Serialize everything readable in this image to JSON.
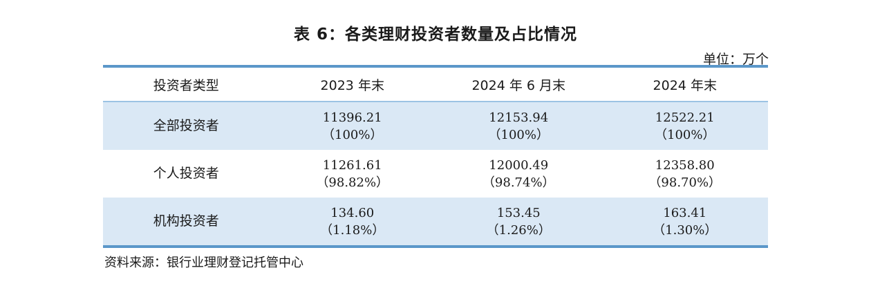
{
  "title": "表 6：各类理财投资者数量及占比情况",
  "unit": "单位：万个",
  "table": {
    "headers": [
      "投资者类型",
      "2023 年末",
      "2024 年 6 月末",
      "2024 年末"
    ],
    "rows": [
      {
        "label": "全部投资者",
        "cells": [
          {
            "value": "11396.21",
            "pct": "（100%）"
          },
          {
            "value": "12153.94",
            "pct": "（100%）"
          },
          {
            "value": "12522.21",
            "pct": "（100%）"
          }
        ]
      },
      {
        "label": "个人投资者",
        "cells": [
          {
            "value": "11261.61",
            "pct": "（98.82%）"
          },
          {
            "value": "12000.49",
            "pct": "（98.74%）"
          },
          {
            "value": "12358.80",
            "pct": "（98.70%）"
          }
        ]
      },
      {
        "label": "机构投资者",
        "cells": [
          {
            "value": "134.60",
            "pct": "（1.18%）"
          },
          {
            "value": "153.45",
            "pct": "（1.26%）"
          },
          {
            "value": "163.41",
            "pct": "（1.30%）"
          }
        ]
      }
    ]
  },
  "source": "资料来源：银行业理财登记托管中心",
  "colors": {
    "rule": "#5b97c9",
    "shade": "#dae8f5"
  }
}
